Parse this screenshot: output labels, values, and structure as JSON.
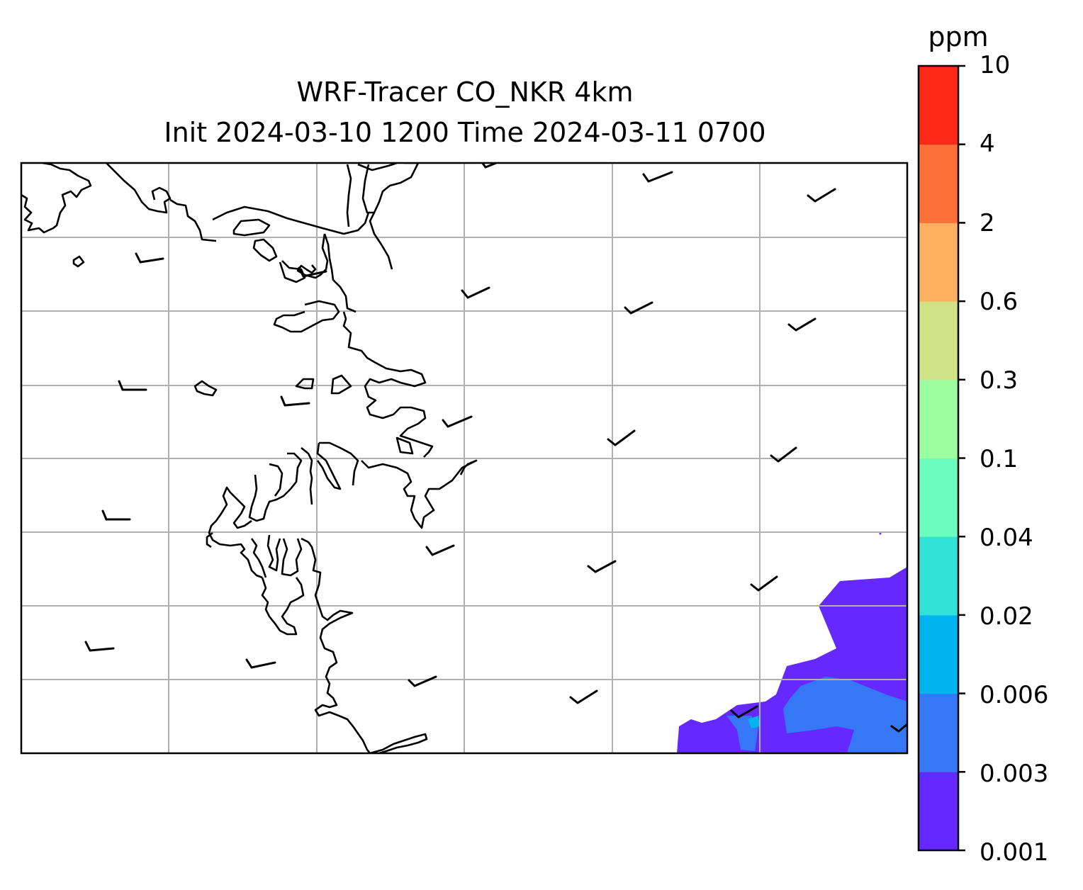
{
  "figure": {
    "title_line1": "WRF-Tracer CO_NKR 4km",
    "title_line2": "Init 2024-03-10 1200 Time 2024-03-11 0700"
  },
  "colorbar": {
    "units": "ppm",
    "tick_labels": [
      "10",
      "4",
      "2",
      "0.6",
      "0.3",
      "0.1",
      "0.04",
      "0.02",
      "0.006",
      "0.003",
      "0.001"
    ],
    "levels": [
      0.001,
      0.003,
      0.006,
      0.02,
      0.04,
      0.1,
      0.3,
      0.6,
      2,
      4,
      10
    ],
    "colors": [
      "#6528ff",
      "#3577f5",
      "#00b5ef",
      "#30e1d7",
      "#6bfdbe",
      "#9dfe9f",
      "#d0e285",
      "#fdb161",
      "#fd7138",
      "#fd2916"
    ]
  },
  "map": {
    "frame_color": "#000000",
    "gridline_color": "#b0b0b0",
    "coastline_color": "#000000",
    "barb_color": "#000000",
    "grid_lines": true,
    "vector_type": "wind barbs"
  }
}
